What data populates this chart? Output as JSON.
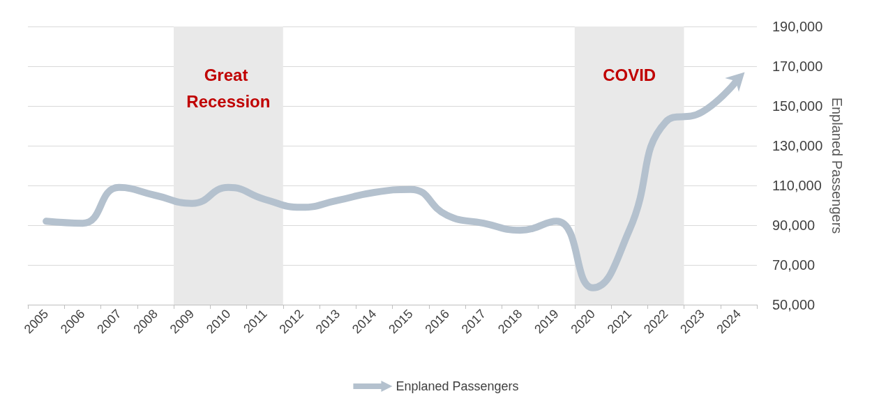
{
  "chart_data": {
    "type": "line",
    "ylabel": "Enplaned Passengers",
    "categories": [
      "2005",
      "2006",
      "2007",
      "2008",
      "2009",
      "2010",
      "2011",
      "2012",
      "2013",
      "2014",
      "2015",
      "2016",
      "2017",
      "2018",
      "2019",
      "2020",
      "2021",
      "2022",
      "2023",
      "2024"
    ],
    "series": [
      {
        "name": "Enplaned Passengers",
        "color": "#b4c1ce",
        "values": [
          92000,
          91000,
          109000,
          105000,
          101000,
          109000,
          103000,
          99000,
          102500,
          106500,
          108000,
          95000,
          91000,
          87500,
          92000,
          58500,
          87500,
          142000,
          147000,
          164000
        ]
      }
    ],
    "ylim": [
      50000,
      190000
    ],
    "yticks": [
      {
        "value": 50000,
        "label": "50,000"
      },
      {
        "value": 70000,
        "label": "70,000"
      },
      {
        "value": 90000,
        "label": "90,000"
      },
      {
        "value": 110000,
        "label": "110,000"
      },
      {
        "value": 130000,
        "label": "130,000"
      },
      {
        "value": 150000,
        "label": "150,000"
      },
      {
        "value": 170000,
        "label": "170,000"
      },
      {
        "value": 190000,
        "label": "190,000"
      }
    ],
    "bands": [
      {
        "axis": "x",
        "from": "2009",
        "to": "2011",
        "label": "Great Recession",
        "color": "#e9e9e9"
      },
      {
        "axis": "x",
        "from": "2020",
        "to": "2022",
        "label": "COVID",
        "color": "#e9e9e9"
      }
    ],
    "grid": "y",
    "legend": "bottom",
    "line_style": "solid"
  }
}
